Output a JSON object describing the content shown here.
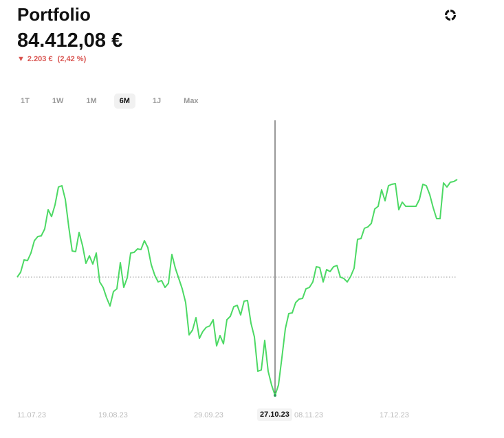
{
  "header": {
    "title": "Portfolio",
    "value": "84.412,08 €",
    "change_icon": "triangle-down-icon",
    "change_abs": "2.203 €",
    "change_pct": "(2,42 %)",
    "change_color": "#d9534f",
    "menu_icon": "loading-ring-icon"
  },
  "tabs": [
    {
      "label": "1T"
    },
    {
      "label": "1W"
    },
    {
      "label": "1M"
    },
    {
      "label": "6M",
      "active": true
    },
    {
      "label": "1J"
    },
    {
      "label": "Max"
    }
  ],
  "chart_data": {
    "type": "line",
    "line_color": "#4cd964",
    "baseline": 0,
    "baseline_style": "dotted",
    "grid": false,
    "x_tick_labels": [
      "11.07.23",
      "19.08.23",
      "29.09.23",
      "08.11.23",
      "17.12.23"
    ],
    "cursor_label": "27.10.23",
    "values": [
      0,
      7,
      25,
      24,
      35,
      53,
      59,
      60,
      70,
      98,
      88,
      105,
      131,
      133,
      113,
      73,
      38,
      37,
      65,
      46,
      20,
      31,
      19,
      35,
      -7,
      -15,
      -30,
      -42,
      -21,
      -17,
      21,
      -15,
      -1,
      35,
      36,
      41,
      40,
      53,
      43,
      18,
      3,
      -7,
      -5,
      -15,
      -9,
      33,
      13,
      -2,
      -17,
      -37,
      -84,
      -77,
      -59,
      -89,
      -79,
      -73,
      -71,
      -62,
      -100,
      -85,
      -97,
      -62,
      -57,
      -43,
      -41,
      -55,
      -35,
      -34,
      -67,
      -87,
      -137,
      -135,
      -92,
      -137,
      -157,
      -172,
      -157,
      -117,
      -75,
      -53,
      -52,
      -37,
      -32,
      -31,
      -17,
      -15,
      -7,
      15,
      14,
      -7,
      11,
      8,
      15,
      17,
      0,
      -2,
      -7,
      1,
      13,
      55,
      56,
      71,
      73,
      78,
      99,
      103,
      127,
      111,
      133,
      135,
      136,
      98,
      109,
      103,
      103,
      103,
      103,
      113,
      135,
      133,
      120,
      101,
      85,
      85,
      137,
      131,
      138,
      139,
      142
    ],
    "cursor_index": 75
  }
}
